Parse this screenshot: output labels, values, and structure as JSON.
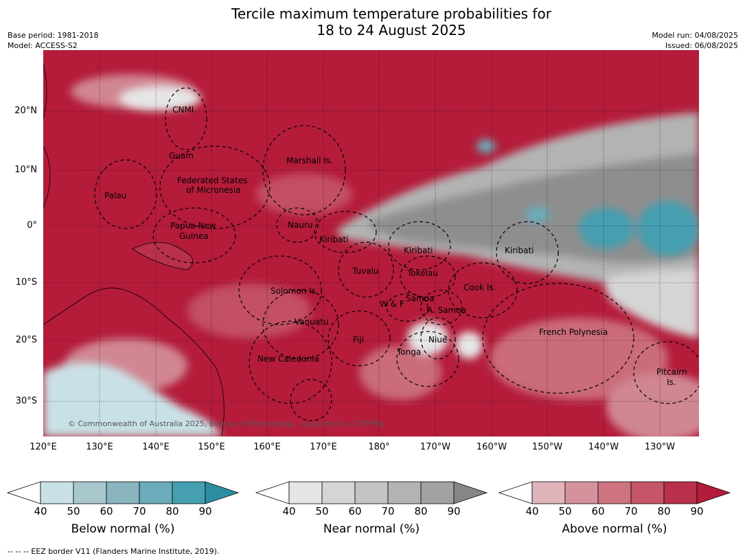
{
  "title_line1": "Tercile maximum temperature probabilities for",
  "title_line2": "18 to 24 August 2025",
  "meta_left": [
    "Base period: 1981-2018",
    "Model: ACCESS-S2"
  ],
  "meta_right": [
    "Model run: 04/08/2025",
    "Issued: 06/08/2025"
  ],
  "lat_labels": [
    "20°N",
    "10°N",
    "0°",
    "10°S",
    "20°S",
    "30°S"
  ],
  "lon_labels": [
    "120°E",
    "130°E",
    "140°E",
    "150°E",
    "160°E",
    "170°E",
    "180°",
    "170°W",
    "160°W",
    "150°W",
    "140°W",
    "130°W"
  ],
  "regions": [
    "CNMI",
    "Guam",
    "Marshall Is.",
    "Federated States",
    "of Micronesia",
    "Palau",
    "Papua New",
    "Guinea",
    "Nauru",
    "Kiribati",
    "Kiribati",
    "Kiribati",
    "Tuvalu",
    "Tokelau",
    "Cook Is.",
    "Solomon Is.",
    "W & F",
    "Samoa",
    "A. Samoa",
    "Vanuatu",
    "Fiji",
    "Niue",
    "Tonga",
    "French Polynesia",
    "New Caledonia",
    "Pitcairn",
    "Is."
  ],
  "copyright": "© Commonwealth of Australia 2025, Bureau of Meteorology, supported by COSPPac",
  "colorbars": [
    {
      "label": "Below normal (%)",
      "ticks": [
        "40",
        "50",
        "60",
        "70",
        "80",
        "90"
      ],
      "colors": [
        "#ffffff",
        "#c9e1e6",
        "#a8c8cd",
        "#8ab4be",
        "#6aacba",
        "#459fb0",
        "#2b8ea3"
      ]
    },
    {
      "label": "Near normal (%)",
      "ticks": [
        "40",
        "50",
        "60",
        "70",
        "80",
        "90"
      ],
      "colors": [
        "#ffffff",
        "#e6e6e6",
        "#d5d5d5",
        "#c4c4c4",
        "#b3b3b3",
        "#a2a2a2",
        "#868686"
      ]
    },
    {
      "label": "Above normal (%)",
      "ticks": [
        "40",
        "50",
        "60",
        "70",
        "80",
        "90"
      ],
      "colors": [
        "#ffffff",
        "#e0b4bb",
        "#d4939c",
        "#cd7480",
        "#c55567",
        "#b9304a",
        "#b41c3a"
      ]
    }
  ],
  "footnote": "-- -- -- EEZ border V11 (Flanders Marine Institute, 2019)."
}
